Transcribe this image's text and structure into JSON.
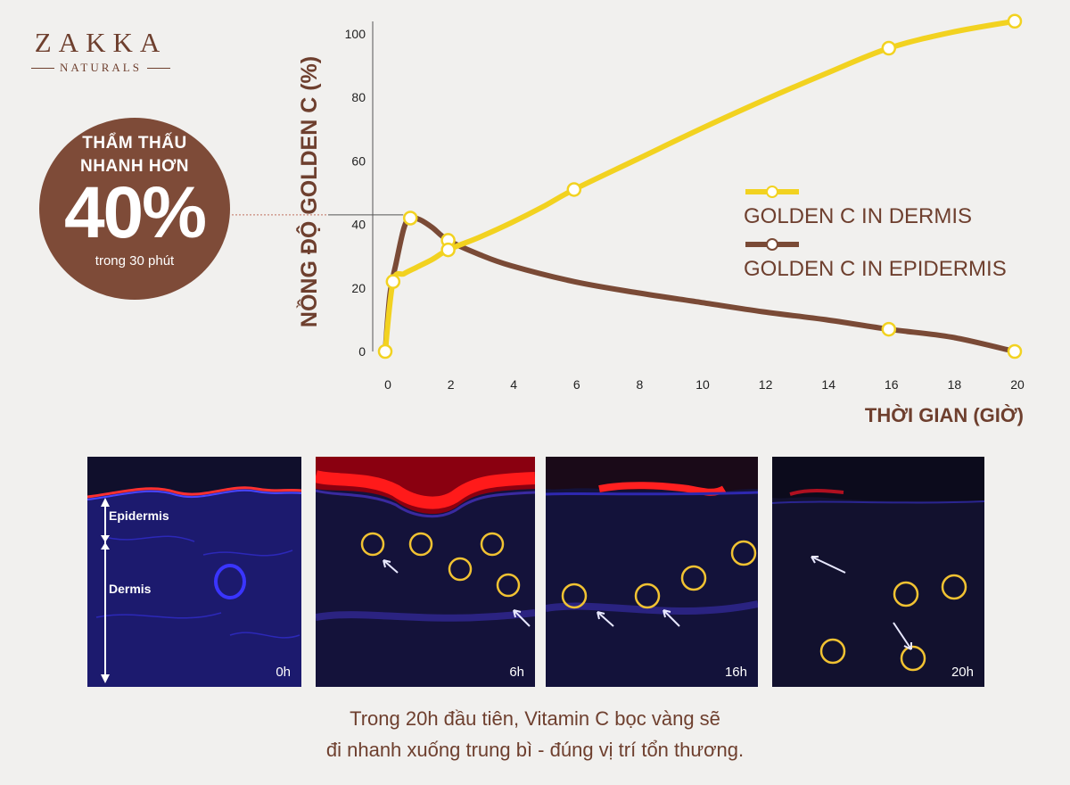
{
  "brand": {
    "name": "ZAKKA",
    "sub": "NATURALS"
  },
  "badge": {
    "line1": "THẨM THẤU",
    "line2": "NHANH HƠN",
    "percent": "40%",
    "sub": "trong 30 phút"
  },
  "colors": {
    "dermis": "#f2d220",
    "epidermis": "#7a4a36",
    "text": "#6e3f2e",
    "badge": "#7e4b38"
  },
  "chart_data": {
    "type": "line",
    "ylabel": "NỒNG ĐỘ GOLDEN C (%)",
    "xlabel": "THỜI GIAN (GIỜ)",
    "xlim": [
      0,
      20
    ],
    "ylim": [
      0,
      100
    ],
    "xticks": [
      0,
      2,
      4,
      6,
      8,
      10,
      12,
      14,
      16,
      18,
      20
    ],
    "yticks": [
      0,
      20,
      40,
      60,
      80,
      100
    ],
    "grid": false,
    "legend": "right",
    "series": [
      {
        "name": "GOLDEN C IN DERMIS",
        "color": "#f2d220",
        "x": [
          0,
          0.25,
          0.6,
          1,
          1.5,
          2,
          3,
          4,
          5,
          6,
          8,
          10,
          12,
          14,
          16,
          18,
          20
        ],
        "y": [
          0,
          22,
          24.5,
          26.5,
          29,
          32,
          36,
          40.5,
          45.5,
          51,
          60.5,
          70,
          79,
          87.5,
          95.5,
          100.5,
          104
        ],
        "markers_x": [
          0,
          0.25,
          2,
          6,
          16,
          20
        ],
        "markers_y": [
          0,
          22,
          32,
          51,
          95.5,
          104
        ]
      },
      {
        "name": "GOLDEN C IN EPIDERMIS",
        "color": "#7a4a36",
        "x": [
          0,
          0.15,
          0.35,
          0.6,
          0.8,
          1.1,
          1.5,
          2,
          3,
          4,
          6,
          8,
          10,
          12,
          14,
          16,
          18,
          20
        ],
        "y": [
          0,
          18,
          28,
          39,
          42,
          41.5,
          39,
          35,
          30.5,
          27,
          22,
          18.5,
          15.5,
          12.5,
          10,
          7,
          4.5,
          0
        ],
        "markers_x": [
          0.8,
          2,
          16,
          20
        ],
        "markers_y": [
          42,
          35,
          7,
          0
        ]
      }
    ],
    "annotation": {
      "y": 43,
      "label": ""
    }
  },
  "panels": [
    {
      "time": "0h",
      "labels": [
        "Epidermis",
        "Dermis"
      ]
    },
    {
      "time": "6h"
    },
    {
      "time": "16h"
    },
    {
      "time": "20h"
    }
  ],
  "caption": {
    "line1": "Trong 20h đầu tiên, Vitamin C bọc vàng sẽ",
    "line2": "đi nhanh xuống trung bì - đúng vị trí tổn thương."
  }
}
